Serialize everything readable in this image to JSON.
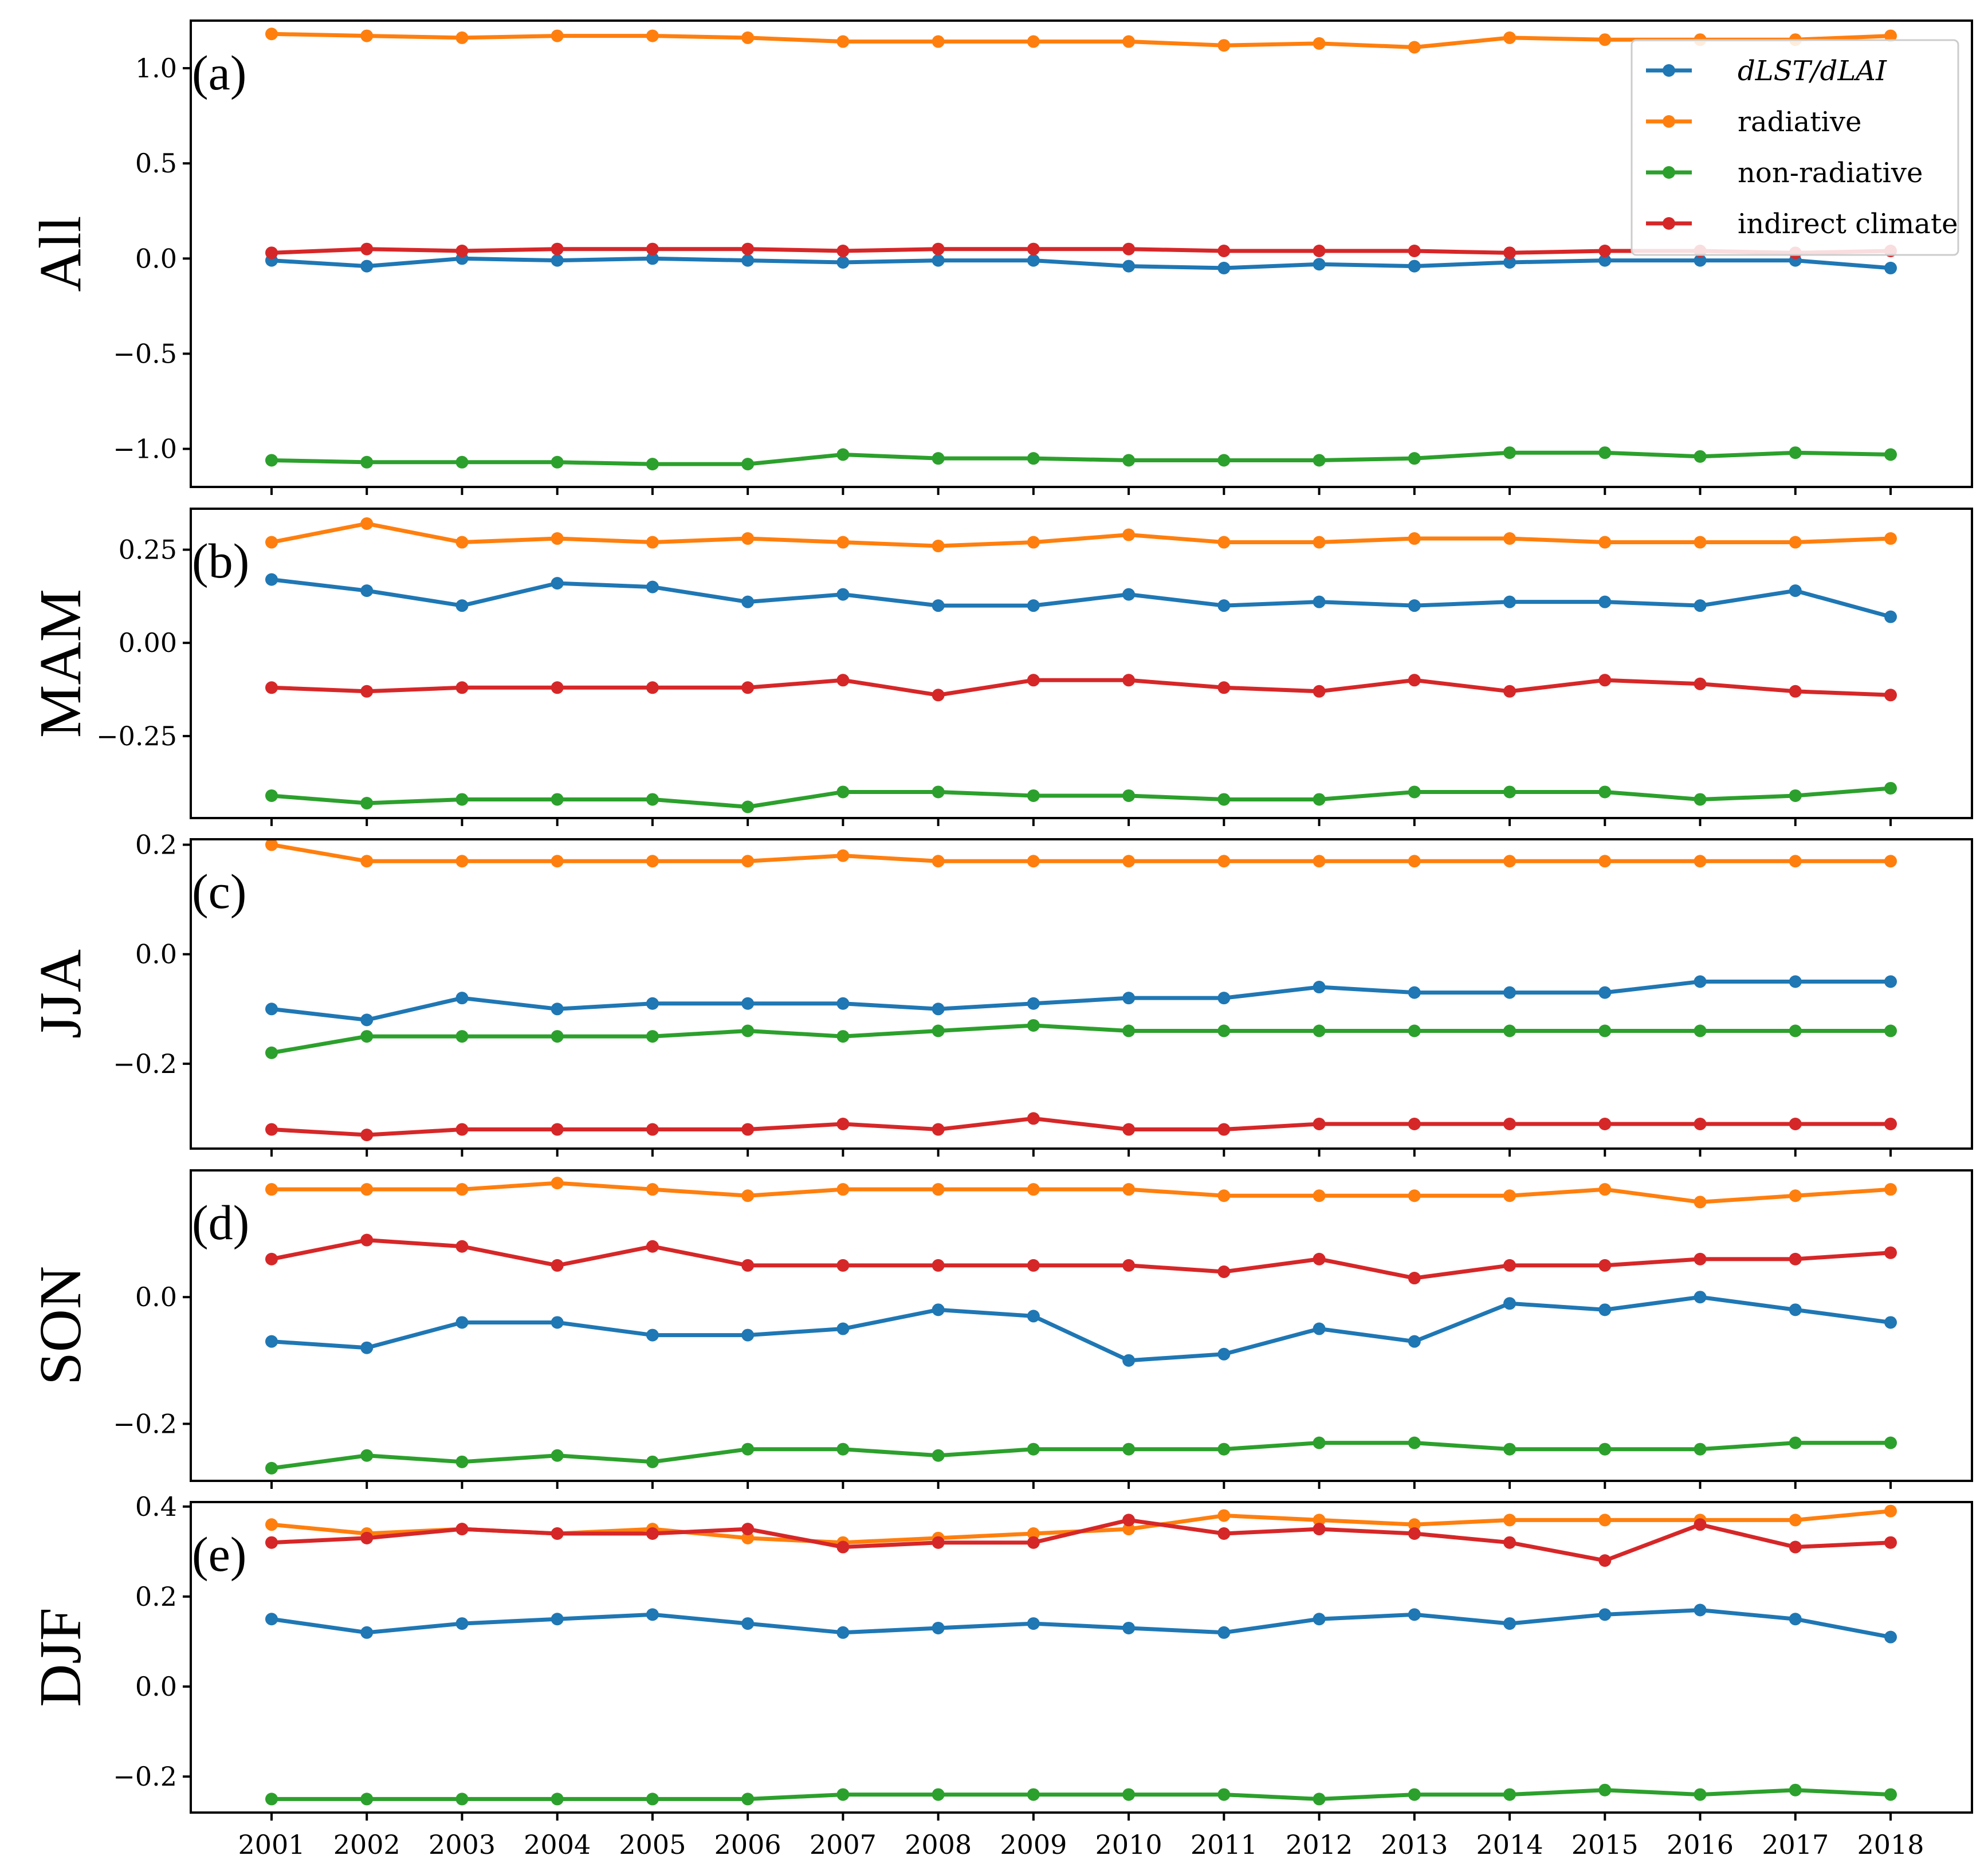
{
  "chart_data": {
    "type": "line",
    "x": [
      2001,
      2002,
      2003,
      2004,
      2005,
      2006,
      2007,
      2008,
      2009,
      2010,
      2011,
      2012,
      2013,
      2014,
      2015,
      2016,
      2017,
      2018
    ],
    "x_tick_labels": [
      "2001",
      "2002",
      "2003",
      "2004",
      "2005",
      "2006",
      "2007",
      "2008",
      "2009",
      "2010",
      "2011",
      "2012",
      "2013",
      "2014",
      "2015",
      "2016",
      "2017",
      "2018"
    ],
    "series_meta": [
      {
        "name": "dLST/dLAI",
        "color": "#1f77b4"
      },
      {
        "name": "radiative",
        "color": "#ff7f0e"
      },
      {
        "name": "non-radiative",
        "color": "#2ca02c"
      },
      {
        "name": "indirect climate",
        "color": "#d62728"
      }
    ],
    "legend_location": "top-right of panel (a)",
    "grid": false,
    "panels": [
      {
        "label": "(a)",
        "ylabel": "All",
        "ylim": [
          -1.2,
          1.25
        ],
        "yticks": [
          -1.0,
          -0.5,
          0.0,
          0.5,
          1.0
        ],
        "ytick_labels": [
          "−1.0",
          "−0.5",
          "0.0",
          "0.5",
          "1.0"
        ],
        "show_legend": true,
        "series": [
          {
            "name": "dLST/dLAI",
            "values": [
              -0.01,
              -0.04,
              0.0,
              -0.01,
              0.0,
              -0.01,
              -0.02,
              -0.01,
              -0.01,
              -0.04,
              -0.05,
              -0.03,
              -0.04,
              -0.02,
              -0.01,
              -0.01,
              -0.01,
              -0.05
            ]
          },
          {
            "name": "radiative",
            "values": [
              1.18,
              1.17,
              1.16,
              1.17,
              1.17,
              1.16,
              1.14,
              1.14,
              1.14,
              1.14,
              1.12,
              1.13,
              1.11,
              1.16,
              1.15,
              1.15,
              1.15,
              1.17
            ]
          },
          {
            "name": "non-radiative",
            "values": [
              -1.06,
              -1.07,
              -1.07,
              -1.07,
              -1.08,
              -1.08,
              -1.03,
              -1.05,
              -1.05,
              -1.06,
              -1.06,
              -1.06,
              -1.05,
              -1.02,
              -1.02,
              -1.04,
              -1.02,
              -1.03
            ]
          },
          {
            "name": "indirect climate",
            "values": [
              0.03,
              0.05,
              0.04,
              0.05,
              0.05,
              0.05,
              0.04,
              0.05,
              0.05,
              0.05,
              0.04,
              0.04,
              0.04,
              0.03,
              0.04,
              0.04,
              0.03,
              0.04
            ]
          }
        ]
      },
      {
        "label": "(b)",
        "ylabel": "MAM",
        "ylim": [
          -0.47,
          0.36
        ],
        "yticks": [
          -0.25,
          0.0,
          0.25
        ],
        "ytick_labels": [
          "−0.25",
          "0.00",
          "0.25"
        ],
        "show_legend": false,
        "series": [
          {
            "name": "dLST/dLAI",
            "values": [
              0.17,
              0.14,
              0.1,
              0.16,
              0.15,
              0.11,
              0.13,
              0.1,
              0.1,
              0.13,
              0.1,
              0.11,
              0.1,
              0.11,
              0.11,
              0.1,
              0.14,
              0.07
            ]
          },
          {
            "name": "radiative",
            "values": [
              0.27,
              0.32,
              0.27,
              0.28,
              0.27,
              0.28,
              0.27,
              0.26,
              0.27,
              0.29,
              0.27,
              0.27,
              0.28,
              0.28,
              0.27,
              0.27,
              0.27,
              0.28
            ]
          },
          {
            "name": "non-radiative",
            "values": [
              -0.41,
              -0.43,
              -0.42,
              -0.42,
              -0.42,
              -0.44,
              -0.4,
              -0.4,
              -0.41,
              -0.41,
              -0.42,
              -0.42,
              -0.4,
              -0.4,
              -0.4,
              -0.42,
              -0.41,
              -0.39
            ]
          },
          {
            "name": "indirect climate",
            "values": [
              -0.12,
              -0.13,
              -0.12,
              -0.12,
              -0.12,
              -0.12,
              -0.1,
              -0.14,
              -0.1,
              -0.1,
              -0.12,
              -0.13,
              -0.1,
              -0.13,
              -0.1,
              -0.11,
              -0.13,
              -0.14
            ]
          }
        ]
      },
      {
        "label": "(c)",
        "ylabel": "JJA",
        "ylim": [
          -0.355,
          0.21
        ],
        "yticks": [
          -0.2,
          0.0,
          0.2
        ],
        "ytick_labels": [
          "−0.2",
          "0.0",
          "0.2"
        ],
        "show_legend": false,
        "series": [
          {
            "name": "dLST/dLAI",
            "values": [
              -0.1,
              -0.12,
              -0.08,
              -0.1,
              -0.09,
              -0.09,
              -0.09,
              -0.1,
              -0.09,
              -0.08,
              -0.08,
              -0.06,
              -0.07,
              -0.07,
              -0.07,
              -0.05,
              -0.05,
              -0.05
            ]
          },
          {
            "name": "radiative",
            "values": [
              0.2,
              0.17,
              0.17,
              0.17,
              0.17,
              0.17,
              0.18,
              0.17,
              0.17,
              0.17,
              0.17,
              0.17,
              0.17,
              0.17,
              0.17,
              0.17,
              0.17,
              0.17
            ]
          },
          {
            "name": "non-radiative",
            "values": [
              -0.18,
              -0.15,
              -0.15,
              -0.15,
              -0.15,
              -0.14,
              -0.15,
              -0.14,
              -0.13,
              -0.14,
              -0.14,
              -0.14,
              -0.14,
              -0.14,
              -0.14,
              -0.14,
              -0.14,
              -0.14
            ]
          },
          {
            "name": "indirect climate",
            "values": [
              -0.32,
              -0.33,
              -0.32,
              -0.32,
              -0.32,
              -0.32,
              -0.31,
              -0.32,
              -0.3,
              -0.32,
              -0.32,
              -0.31,
              -0.31,
              -0.31,
              -0.31,
              -0.31,
              -0.31,
              -0.31
            ]
          }
        ]
      },
      {
        "label": "(d)",
        "ylabel": "SON",
        "ylim": [
          -0.29,
          0.2
        ],
        "yticks": [
          -0.2,
          0.0
        ],
        "ytick_labels": [
          "−0.2",
          "0.0"
        ],
        "show_legend": false,
        "series": [
          {
            "name": "dLST/dLAI",
            "values": [
              -0.07,
              -0.08,
              -0.04,
              -0.04,
              -0.06,
              -0.06,
              -0.05,
              -0.02,
              -0.03,
              -0.1,
              -0.09,
              -0.05,
              -0.07,
              -0.01,
              -0.02,
              0.0,
              -0.02,
              -0.04
            ]
          },
          {
            "name": "radiative",
            "values": [
              0.17,
              0.17,
              0.17,
              0.18,
              0.17,
              0.16,
              0.17,
              0.17,
              0.17,
              0.17,
              0.16,
              0.16,
              0.16,
              0.16,
              0.17,
              0.15,
              0.16,
              0.17
            ]
          },
          {
            "name": "non-radiative",
            "values": [
              -0.27,
              -0.25,
              -0.26,
              -0.25,
              -0.26,
              -0.24,
              -0.24,
              -0.25,
              -0.24,
              -0.24,
              -0.24,
              -0.23,
              -0.23,
              -0.24,
              -0.24,
              -0.24,
              -0.23,
              -0.23
            ]
          },
          {
            "name": "indirect climate",
            "values": [
              0.06,
              0.09,
              0.08,
              0.05,
              0.08,
              0.05,
              0.05,
              0.05,
              0.05,
              0.05,
              0.04,
              0.06,
              0.03,
              0.05,
              0.05,
              0.06,
              0.06,
              0.07
            ]
          }
        ]
      },
      {
        "label": "(e)",
        "ylabel": "DJF",
        "ylim": [
          -0.28,
          0.41
        ],
        "yticks": [
          -0.2,
          0.0,
          0.2,
          0.4
        ],
        "ytick_labels": [
          "−0.2",
          "0.0",
          "0.2",
          "0.4"
        ],
        "show_legend": false,
        "series": [
          {
            "name": "dLST/dLAI",
            "values": [
              0.15,
              0.12,
              0.14,
              0.15,
              0.16,
              0.14,
              0.12,
              0.13,
              0.14,
              0.13,
              0.12,
              0.15,
              0.16,
              0.14,
              0.16,
              0.17,
              0.15,
              0.11
            ]
          },
          {
            "name": "radiative",
            "values": [
              0.36,
              0.34,
              0.35,
              0.34,
              0.35,
              0.33,
              0.32,
              0.33,
              0.34,
              0.35,
              0.38,
              0.37,
              0.36,
              0.37,
              0.37,
              0.37,
              0.37,
              0.39
            ]
          },
          {
            "name": "non-radiative",
            "values": [
              -0.25,
              -0.25,
              -0.25,
              -0.25,
              -0.25,
              -0.25,
              -0.24,
              -0.24,
              -0.24,
              -0.24,
              -0.24,
              -0.25,
              -0.24,
              -0.24,
              -0.23,
              -0.24,
              -0.23,
              -0.24
            ]
          },
          {
            "name": "indirect climate",
            "values": [
              0.32,
              0.33,
              0.35,
              0.34,
              0.34,
              0.35,
              0.31,
              0.32,
              0.32,
              0.37,
              0.34,
              0.35,
              0.34,
              0.32,
              0.28,
              0.36,
              0.31,
              0.32
            ]
          }
        ]
      }
    ]
  }
}
